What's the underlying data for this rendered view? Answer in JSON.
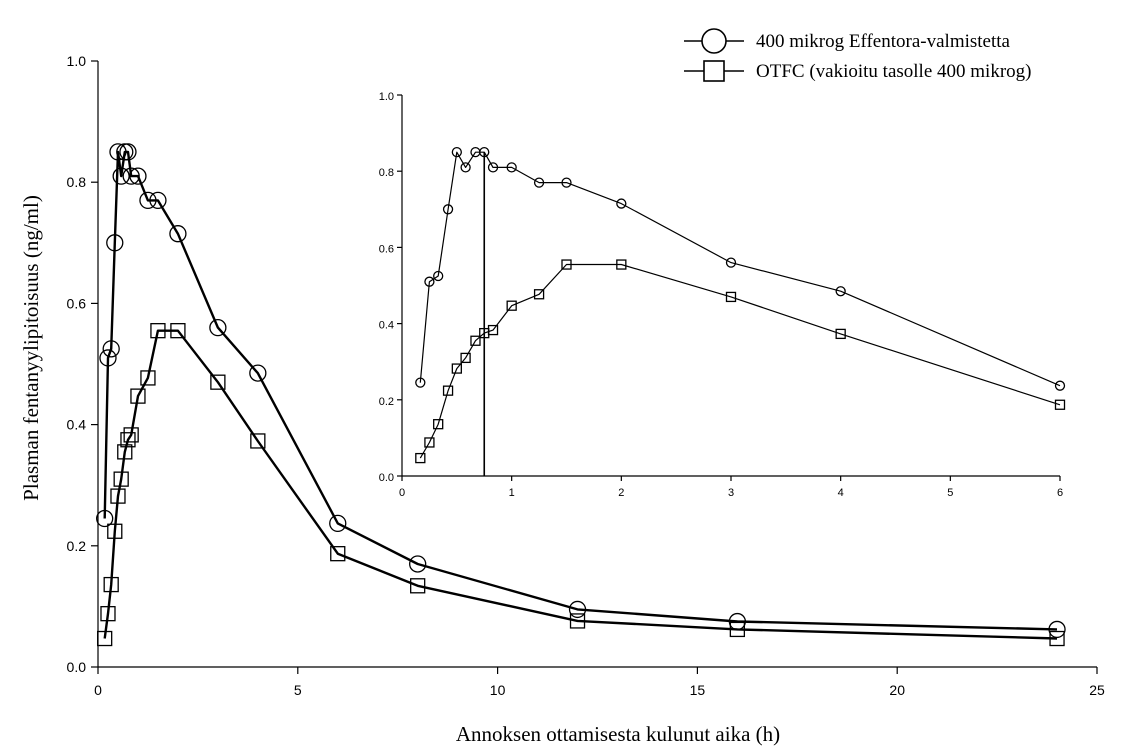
{
  "chart_data": {
    "type": "line",
    "xlabel": "Annoksen ottamisesta kulunut aika (h)",
    "ylabel": "Plasman fentanyylipitoisuus (ng/ml)",
    "xlim": [
      0,
      25
    ],
    "ylim": [
      0,
      1.0
    ],
    "xticks": [
      "0",
      "5",
      "10",
      "15",
      "20",
      "25"
    ],
    "yticks": [
      "0.0",
      "0.2",
      "0.4",
      "0.6",
      "0.8",
      "1.0"
    ],
    "legend_position": "top-right",
    "grid": false,
    "series": [
      {
        "name": "400 mikrog Effentora-valmistetta",
        "marker": "circle",
        "x": [
          0.167,
          0.25,
          0.33,
          0.42,
          0.5,
          0.58,
          0.67,
          0.75,
          0.83,
          1,
          1.25,
          1.5,
          2,
          3,
          4,
          6,
          8,
          12,
          16,
          24
        ],
        "y": [
          0.245,
          0.51,
          0.525,
          0.7,
          0.85,
          0.81,
          0.85,
          0.85,
          0.81,
          0.81,
          0.77,
          0.77,
          0.715,
          0.56,
          0.485,
          0.237,
          0.17,
          0.095,
          0.075,
          0.062
        ]
      },
      {
        "name": "OTFC (vakioitu tasolle 400 mikrog)",
        "marker": "square",
        "x": [
          0.167,
          0.25,
          0.33,
          0.42,
          0.5,
          0.58,
          0.67,
          0.75,
          0.83,
          1,
          1.25,
          1.5,
          2,
          3,
          4,
          6,
          8,
          12,
          16,
          24
        ],
        "y": [
          0.047,
          0.088,
          0.136,
          0.224,
          0.282,
          0.31,
          0.355,
          0.375,
          0.383,
          0.447,
          0.477,
          0.555,
          0.555,
          0.47,
          0.373,
          0.187,
          0.134,
          0.076,
          0.062,
          0.047
        ]
      }
    ],
    "inset": {
      "type": "line",
      "xlim": [
        0,
        6
      ],
      "ylim": [
        0,
        1.0
      ],
      "xticks": [
        "0",
        "1",
        "2",
        "3",
        "4",
        "5",
        "6"
      ],
      "yticks": [
        "0.0",
        "0.2",
        "0.4",
        "0.6",
        "0.8",
        "1.0"
      ],
      "vertical_line_x": 0.75,
      "series": [
        {
          "name": "400 mikrog Effentora-valmistetta",
          "marker": "circle",
          "x": [
            0.167,
            0.25,
            0.33,
            0.42,
            0.5,
            0.58,
            0.67,
            0.75,
            0.83,
            1,
            1.25,
            1.5,
            2,
            3,
            4,
            6
          ],
          "y": [
            0.245,
            0.51,
            0.525,
            0.7,
            0.85,
            0.81,
            0.85,
            0.85,
            0.81,
            0.81,
            0.77,
            0.77,
            0.715,
            0.56,
            0.485,
            0.237
          ]
        },
        {
          "name": "OTFC (vakioitu tasolle 400 mikrog)",
          "marker": "square",
          "x": [
            0.167,
            0.25,
            0.33,
            0.42,
            0.5,
            0.58,
            0.67,
            0.75,
            0.83,
            1,
            1.25,
            1.5,
            2,
            3,
            4,
            6
          ],
          "y": [
            0.047,
            0.088,
            0.136,
            0.224,
            0.282,
            0.31,
            0.355,
            0.375,
            0.383,
            0.447,
            0.477,
            0.555,
            0.555,
            0.47,
            0.373,
            0.187
          ]
        }
      ]
    }
  }
}
